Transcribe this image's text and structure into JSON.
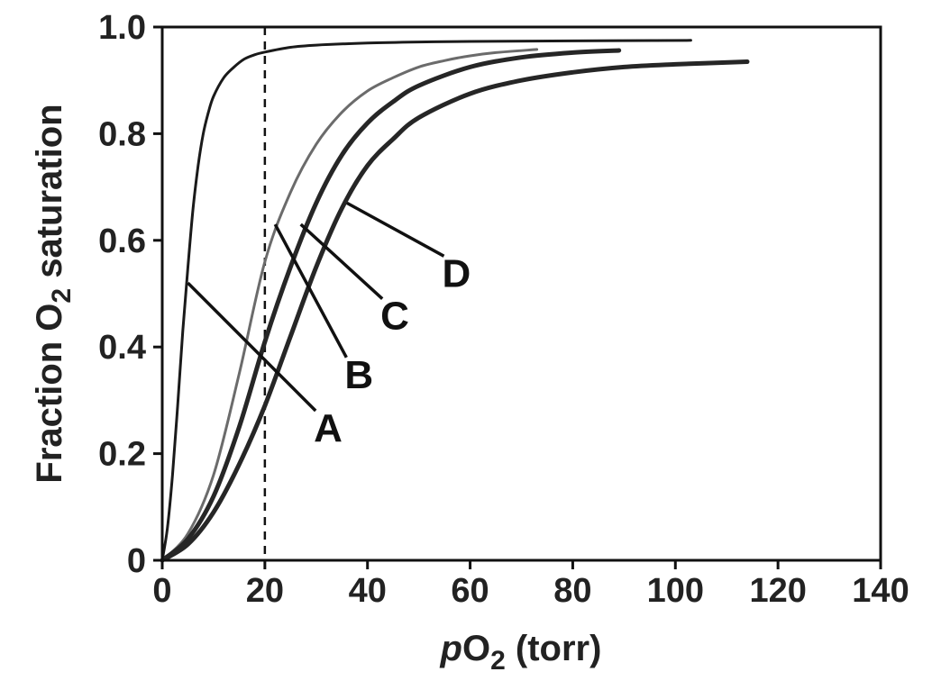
{
  "chart_data": {
    "type": "line",
    "title": "",
    "xlabel": {
      "prefix": "p",
      "main": "O",
      "sub": "2",
      "suffix": " (torr)"
    },
    "ylabel": {
      "main": "Fraction O",
      "sub": "2",
      "suffix": " saturation"
    },
    "xlim": [
      0,
      140
    ],
    "ylim": [
      0,
      1.0
    ],
    "x_ticks": [
      0,
      20,
      40,
      60,
      80,
      100,
      120,
      140
    ],
    "y_ticks": [
      0,
      0.2,
      0.4,
      0.6,
      0.8,
      1.0
    ],
    "x_tick_labels": [
      "0",
      "20",
      "40",
      "60",
      "80",
      "100",
      "120",
      "140"
    ],
    "y_tick_labels": [
      "0",
      "0.2",
      "0.4",
      "0.6",
      "0.8",
      "1.0"
    ],
    "reference_line": {
      "axis": "x",
      "value": 20,
      "style": "dashed"
    },
    "series": [
      {
        "name": "A",
        "x": [
          0,
          1,
          2,
          3,
          4,
          5,
          6,
          7,
          8,
          9,
          10,
          12,
          14,
          16,
          18,
          20,
          25,
          30,
          40,
          50,
          60,
          80,
          103
        ],
        "y": [
          0,
          0.06,
          0.16,
          0.29,
          0.43,
          0.55,
          0.66,
          0.74,
          0.8,
          0.84,
          0.87,
          0.905,
          0.925,
          0.94,
          0.948,
          0.953,
          0.962,
          0.966,
          0.97,
          0.972,
          0.973,
          0.974,
          0.975
        ],
        "label_anchor": [
          5,
          0.52
        ]
      },
      {
        "name": "B",
        "x": [
          0,
          5,
          10,
          15,
          20,
          25,
          30,
          35,
          40,
          45,
          50,
          55,
          60,
          65,
          73
        ],
        "y": [
          0,
          0.05,
          0.16,
          0.35,
          0.56,
          0.69,
          0.78,
          0.84,
          0.88,
          0.905,
          0.925,
          0.937,
          0.946,
          0.952,
          0.958
        ],
        "label_anchor": [
          22,
          0.63
        ]
      },
      {
        "name": "C",
        "x": [
          0,
          5,
          10,
          15,
          20,
          25,
          30,
          35,
          40,
          45,
          50,
          60,
          70,
          80,
          89
        ],
        "y": [
          0,
          0.04,
          0.12,
          0.25,
          0.41,
          0.55,
          0.67,
          0.76,
          0.82,
          0.86,
          0.89,
          0.925,
          0.943,
          0.952,
          0.956
        ],
        "label_anchor": [
          27,
          0.63
        ]
      },
      {
        "name": "D",
        "x": [
          0,
          5,
          10,
          15,
          20,
          25,
          30,
          35,
          40,
          45,
          50,
          60,
          70,
          80,
          90,
          100,
          114
        ],
        "y": [
          0,
          0.03,
          0.09,
          0.18,
          0.29,
          0.42,
          0.55,
          0.66,
          0.74,
          0.79,
          0.83,
          0.875,
          0.9,
          0.915,
          0.925,
          0.93,
          0.935
        ],
        "label_anchor": [
          36,
          0.67
        ]
      }
    ],
    "annotations": [
      {
        "text": "A",
        "target": "A",
        "at": [
          32,
          0.25
        ]
      },
      {
        "text": "B",
        "target": "B",
        "at": [
          38,
          0.35
        ]
      },
      {
        "text": "C",
        "target": "C",
        "at": [
          45,
          0.46
        ]
      },
      {
        "text": "D",
        "target": "D",
        "at": [
          57,
          0.54
        ]
      }
    ],
    "colors": {
      "A": "#1a1a1a",
      "B": "#6b6b6b",
      "C": "#262626",
      "D": "#262626"
    },
    "stroke_widths": {
      "A": 3,
      "B": 3,
      "C": 5,
      "D": 5
    },
    "grid": false,
    "legend": "none"
  }
}
